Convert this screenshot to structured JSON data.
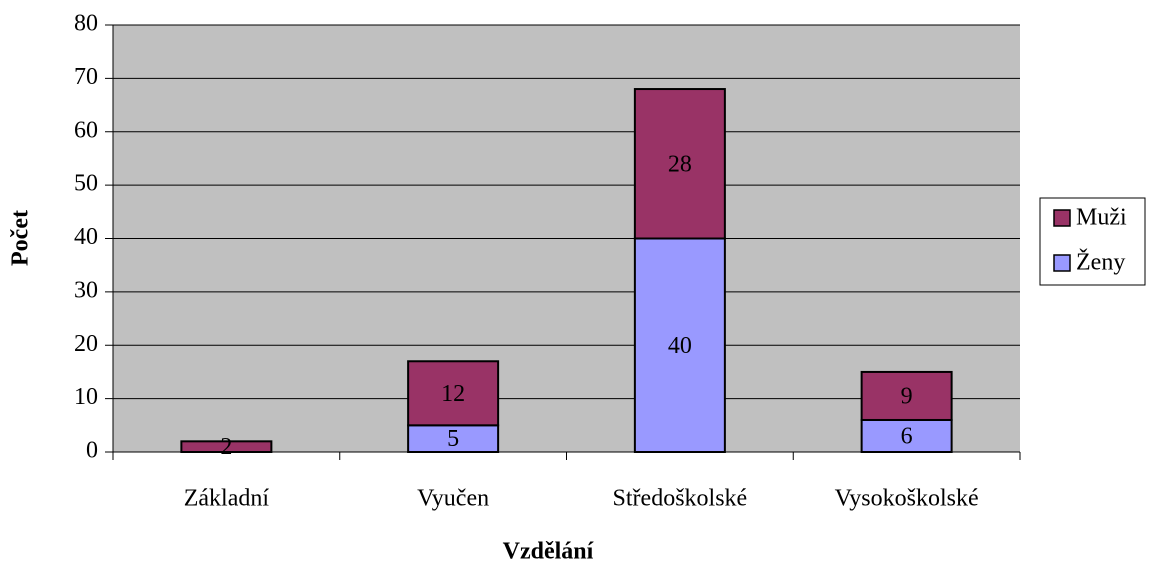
{
  "chart_data": {
    "type": "stacked_bar",
    "x_label": "Vzdělání",
    "y_label": "Počet",
    "categories": [
      "Základní",
      "Vyučen",
      "Středoškolské",
      "Vysokoškolské"
    ],
    "series": [
      {
        "name": "Ženy",
        "color": "#9999ff",
        "values": [
          null,
          5,
          40,
          6
        ]
      },
      {
        "name": "Muži",
        "color": "#993366",
        "values": [
          2,
          12,
          28,
          9
        ]
      }
    ],
    "ylim": [
      0,
      80
    ],
    "yticks": [
      0,
      10,
      20,
      30,
      40,
      50,
      60,
      70,
      80
    ],
    "grid": true,
    "legend": "right",
    "plot_background": "#c0c0c0"
  }
}
